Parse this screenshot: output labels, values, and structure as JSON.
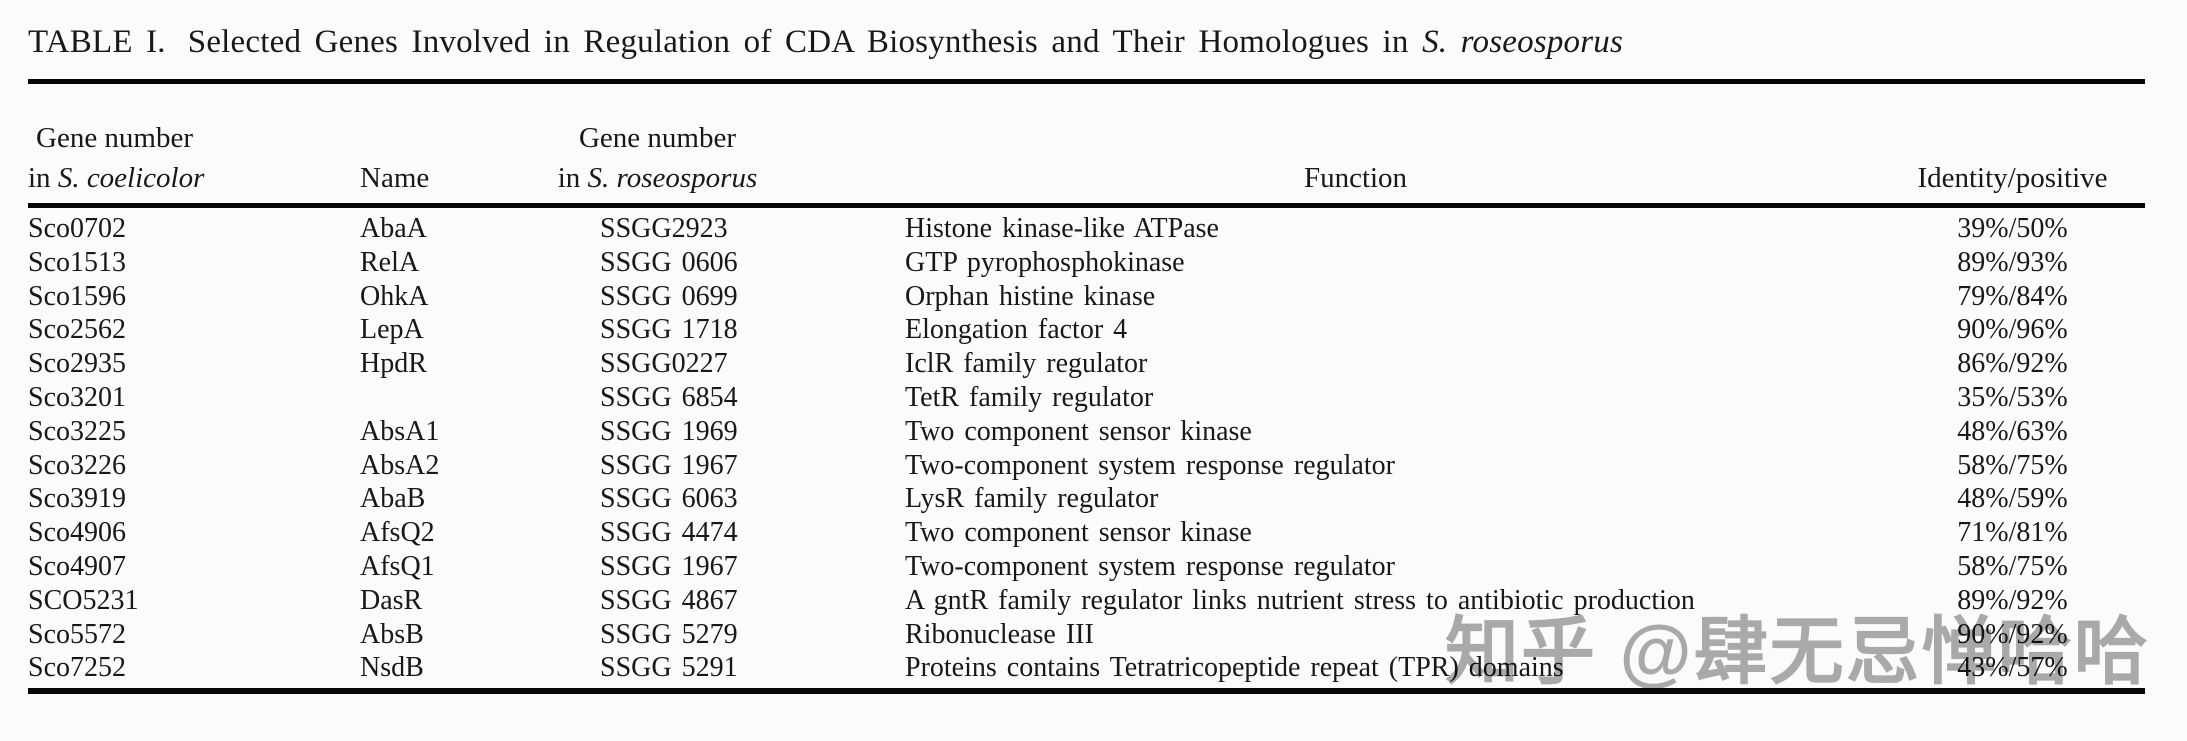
{
  "title": {
    "label": "TABLE I.",
    "text": "Selected Genes Involved in Regulation of CDA Biosynthesis and Their Homologues in",
    "species_italic": "S. roseosporus"
  },
  "table": {
    "headers": {
      "col1_line1": "Gene number",
      "col1_line2_prefix": "in ",
      "col1_line2_italic": "S. coelicolor",
      "col2": "Name",
      "col3_line1": "Gene number",
      "col3_line2_prefix": "in ",
      "col3_line2_italic": "S. roseosporus",
      "col4": "Function",
      "col5": "Identity/positive"
    },
    "rows": [
      [
        "Sco0702",
        "AbaA",
        "SSGG2923",
        "Histone kinase-like ATPase",
        "39%/50%"
      ],
      [
        "Sco1513",
        "RelA",
        "SSGG 0606",
        "GTP pyrophosphokinase",
        "89%/93%"
      ],
      [
        "Sco1596",
        "OhkA",
        "SSGG 0699",
        "Orphan histine kinase",
        "79%/84%"
      ],
      [
        "Sco2562",
        "LepA",
        "SSGG 1718",
        "Elongation factor 4",
        "90%/96%"
      ],
      [
        "Sco2935",
        "HpdR",
        "SSGG0227",
        "IclR family regulator",
        "86%/92%"
      ],
      [
        "Sco3201",
        "",
        "SSGG 6854",
        "TetR family regulator",
        "35%/53%"
      ],
      [
        "Sco3225",
        "AbsA1",
        "SSGG 1969",
        "Two component sensor kinase",
        "48%/63%"
      ],
      [
        "Sco3226",
        "AbsA2",
        "SSGG 1967",
        "Two-component system response regulator",
        "58%/75%"
      ],
      [
        "Sco3919",
        "AbaB",
        "SSGG 6063",
        "LysR family regulator",
        "48%/59%"
      ],
      [
        "Sco4906",
        "AfsQ2",
        "SSGG 4474",
        "Two component sensor kinase",
        "71%/81%"
      ],
      [
        "Sco4907",
        "AfsQ1",
        "SSGG 1967",
        "Two-component system response regulator",
        "58%/75%"
      ],
      [
        "SCO5231",
        "DasR",
        "SSGG 4867",
        "A gntR family regulator links nutrient stress to antibiotic production",
        "89%/92%"
      ],
      [
        "Sco5572",
        "AbsB",
        "SSGG 5279",
        "Ribonuclease III",
        "90%/92%"
      ],
      [
        "Sco7252",
        "NsdB",
        "SSGG 5291",
        "Proteins contains Tetratricopeptide repeat (TPR) domains",
        "43%/57%"
      ]
    ]
  },
  "watermark": {
    "text": "知乎 @肆无忌惮哈哈",
    "color": "#a3a3a3"
  },
  "colors": {
    "background": "#fbfbf9",
    "text": "#181818",
    "rule": "#070707"
  }
}
